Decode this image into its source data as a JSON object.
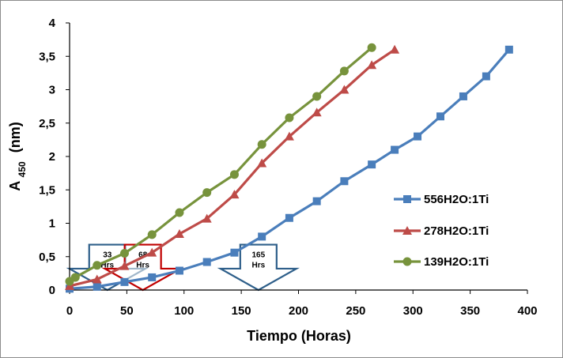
{
  "chart_data": {
    "type": "line",
    "title": "",
    "xlabel": "Tiempo (Horas)",
    "ylabel_main": "A",
    "ylabel_sub": "450",
    "ylabel_unit": "(nm)",
    "xlim": [
      0,
      400
    ],
    "ylim": [
      0,
      4
    ],
    "x_ticks": [
      0,
      50,
      100,
      150,
      200,
      250,
      300,
      350,
      400
    ],
    "x_tick_labels": [
      "0",
      "50",
      "100",
      "150",
      "200",
      "250",
      "300",
      "350",
      "400"
    ],
    "y_ticks": [
      0,
      0.5,
      1,
      1.5,
      2,
      2.5,
      3,
      3.5,
      4
    ],
    "y_tick_labels": [
      "0",
      "0,5",
      "1",
      "1,5",
      "2",
      "2,5",
      "3",
      "3,5",
      "4"
    ],
    "grid": false,
    "legend_position": "right",
    "series": [
      {
        "name": "556H2O:1Ti",
        "color": "#4a7ebb",
        "marker": "square",
        "x": [
          0,
          24,
          48,
          72,
          96,
          120,
          144,
          168,
          192,
          216,
          240,
          264,
          284,
          304,
          324,
          344,
          364,
          384
        ],
        "y": [
          0.02,
          0.05,
          0.12,
          0.19,
          0.29,
          0.42,
          0.56,
          0.8,
          1.08,
          1.33,
          1.63,
          1.88,
          2.1,
          2.3,
          2.6,
          2.9,
          3.2,
          3.6
        ]
      },
      {
        "name": "278H2O:1Ti",
        "color": "#be4b48",
        "marker": "triangle",
        "x": [
          0,
          24,
          48,
          72,
          96,
          120,
          144,
          168,
          192,
          216,
          240,
          264,
          284
        ],
        "y": [
          0.06,
          0.16,
          0.36,
          0.56,
          0.84,
          1.07,
          1.43,
          1.9,
          2.3,
          2.66,
          3.0,
          3.37,
          3.6
        ]
      },
      {
        "name": "139H2O:1Ti",
        "color": "#77933c",
        "marker": "circle",
        "x": [
          0,
          5,
          24,
          48,
          72,
          96,
          120,
          144,
          168,
          192,
          216,
          240,
          264
        ],
        "y": [
          0.13,
          0.19,
          0.37,
          0.55,
          0.83,
          1.16,
          1.46,
          1.73,
          2.18,
          2.58,
          2.9,
          3.28,
          3.63
        ]
      }
    ],
    "annotations": [
      {
        "text": "33 Hrs",
        "color": "#2e5f8a",
        "x_center": 33
      },
      {
        "text": "68 Hrs",
        "color": "#c00000",
        "x_center": 64
      },
      {
        "text": "165 Hrs",
        "color": "#2e5f8a",
        "x_center": 165
      }
    ]
  }
}
